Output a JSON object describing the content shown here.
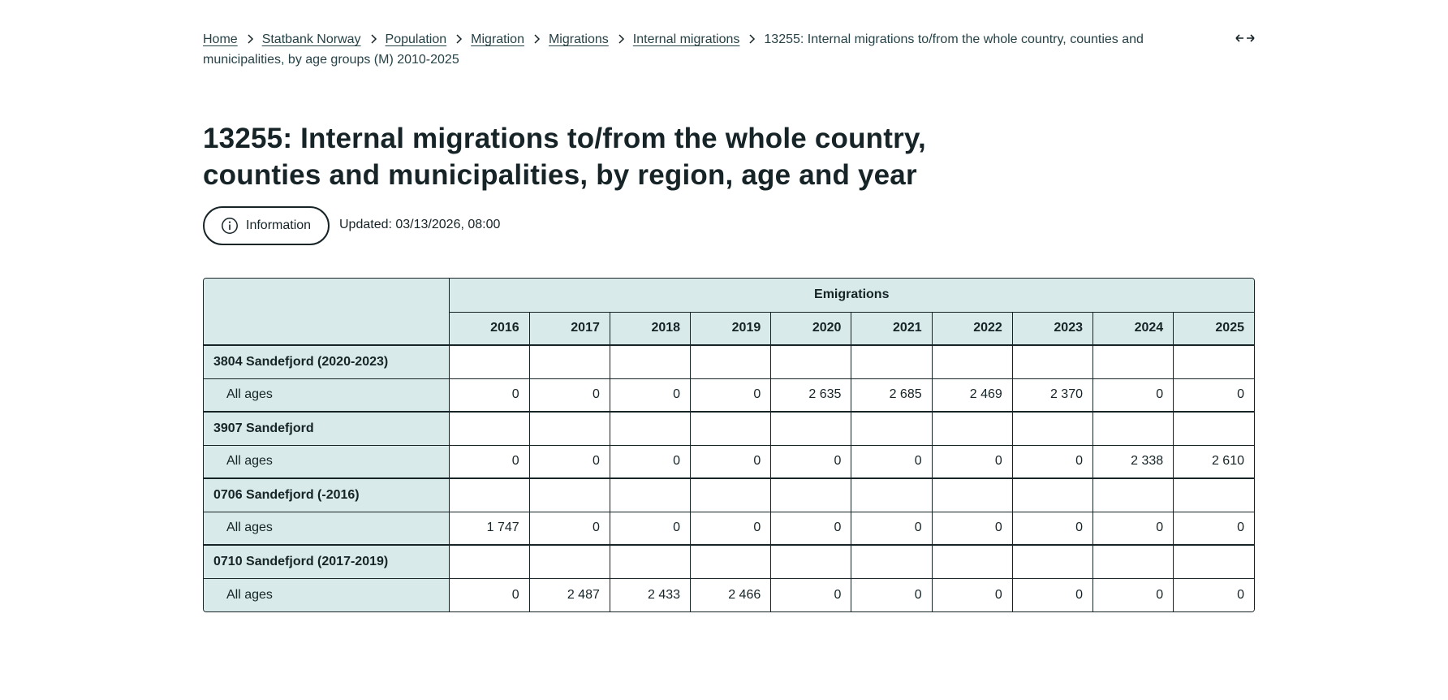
{
  "breadcrumb": {
    "items": [
      {
        "label": "Home"
      },
      {
        "label": "Statbank Norway"
      },
      {
        "label": "Population"
      },
      {
        "label": "Migration"
      },
      {
        "label": "Migrations"
      },
      {
        "label": "Internal migrations"
      }
    ],
    "current": "13255: Internal migrations to/from the whole country, counties and municipalities, by age groups (M) 2010-2025",
    "expand_icon": "arrows-expand-icon"
  },
  "title": "13255: Internal migrations to/from the whole country, counties and municipalities, by region, age and year",
  "info_button": {
    "label": "Information",
    "icon": "info-circle-icon"
  },
  "updated": "Updated: 03/13/2026, 08:00",
  "table": {
    "group_header": "Emigrations",
    "years": [
      "2016",
      "2017",
      "2018",
      "2019",
      "2020",
      "2021",
      "2022",
      "2023",
      "2024",
      "2025"
    ],
    "regions": [
      {
        "name": "3804 Sandefjord (2020-2023)",
        "sub_label": "All ages",
        "values": [
          "0",
          "0",
          "0",
          "0",
          "2 635",
          "2 685",
          "2 469",
          "2 370",
          "0",
          "0"
        ]
      },
      {
        "name": "3907 Sandefjord",
        "sub_label": "All ages",
        "values": [
          "0",
          "0",
          "0",
          "0",
          "0",
          "0",
          "0",
          "0",
          "2 338",
          "2 610"
        ]
      },
      {
        "name": "0706 Sandefjord (-2016)",
        "sub_label": "All ages",
        "values": [
          "1 747",
          "0",
          "0",
          "0",
          "0",
          "0",
          "0",
          "0",
          "0",
          "0"
        ]
      },
      {
        "name": "0710 Sandefjord (2017-2019)",
        "sub_label": "All ages",
        "values": [
          "0",
          "2 487",
          "2 433",
          "2 466",
          "0",
          "0",
          "0",
          "0",
          "0",
          "0"
        ]
      }
    ]
  },
  "colors": {
    "header_bg": "#d8ebea",
    "text": "#162327",
    "border": "#162327"
  }
}
